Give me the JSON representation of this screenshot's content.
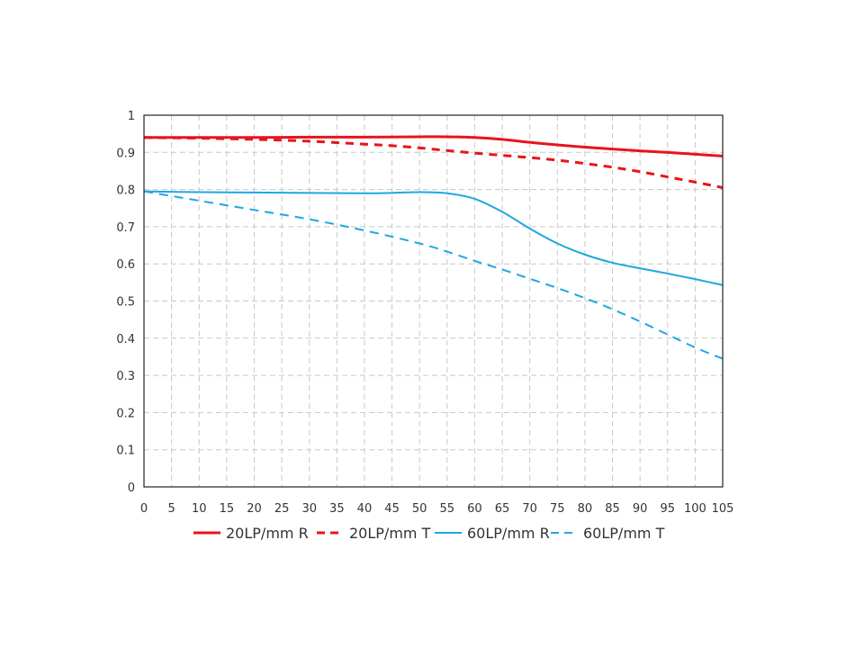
{
  "chart_data": {
    "type": "line",
    "title": "",
    "xlabel": "",
    "ylabel": "",
    "xlim": [
      0,
      105
    ],
    "ylim": [
      0,
      1
    ],
    "x_ticks": [
      0,
      5,
      10,
      15,
      20,
      25,
      30,
      35,
      40,
      45,
      50,
      55,
      60,
      65,
      70,
      75,
      80,
      85,
      90,
      95,
      100,
      105
    ],
    "y_ticks": [
      0,
      0.1,
      0.2,
      0.3,
      0.4,
      0.5,
      0.6,
      0.7,
      0.8,
      0.9,
      1
    ],
    "y_tick_labels": [
      "0",
      "0.1",
      "0.2",
      "0.3",
      "0.4",
      "0.5",
      "0.6",
      "0.7",
      "0.8",
      "0.9",
      "1"
    ],
    "grid": true,
    "legend_position": "bottom",
    "series": [
      {
        "name": "20LP/mm R",
        "color": "#e8141b",
        "dashed": false,
        "x": [
          0,
          10,
          20,
          30,
          40,
          50,
          55,
          60,
          65,
          70,
          75,
          80,
          85,
          90,
          95,
          100,
          105
        ],
        "y": [
          0.94,
          0.94,
          0.94,
          0.941,
          0.941,
          0.942,
          0.942,
          0.94,
          0.935,
          0.927,
          0.92,
          0.914,
          0.909,
          0.904,
          0.9,
          0.895,
          0.89
        ]
      },
      {
        "name": "20LP/mm T",
        "color": "#e8141b",
        "dashed": true,
        "x": [
          0,
          10,
          20,
          30,
          40,
          45,
          50,
          55,
          60,
          65,
          70,
          75,
          80,
          85,
          90,
          95,
          100,
          105
        ],
        "y": [
          0.94,
          0.938,
          0.935,
          0.93,
          0.922,
          0.918,
          0.912,
          0.905,
          0.898,
          0.892,
          0.886,
          0.879,
          0.87,
          0.86,
          0.848,
          0.834,
          0.82,
          0.805
        ]
      },
      {
        "name": "60LP/mm R",
        "color": "#1ea7e1",
        "dashed": false,
        "x": [
          0,
          10,
          20,
          30,
          40,
          45,
          50,
          55,
          60,
          65,
          70,
          75,
          80,
          85,
          90,
          95,
          100,
          105
        ],
        "y": [
          0.795,
          0.793,
          0.792,
          0.791,
          0.79,
          0.791,
          0.793,
          0.79,
          0.775,
          0.74,
          0.695,
          0.655,
          0.625,
          0.603,
          0.588,
          0.574,
          0.559,
          0.543
        ]
      },
      {
        "name": "60LP/mm T",
        "color": "#1ea7e1",
        "dashed": true,
        "x": [
          0,
          10,
          20,
          30,
          40,
          50,
          55,
          60,
          65,
          70,
          75,
          80,
          85,
          90,
          95,
          100,
          105
        ],
        "y": [
          0.795,
          0.77,
          0.745,
          0.72,
          0.69,
          0.655,
          0.633,
          0.608,
          0.585,
          0.56,
          0.535,
          0.508,
          0.478,
          0.445,
          0.41,
          0.375,
          0.345
        ]
      }
    ]
  }
}
